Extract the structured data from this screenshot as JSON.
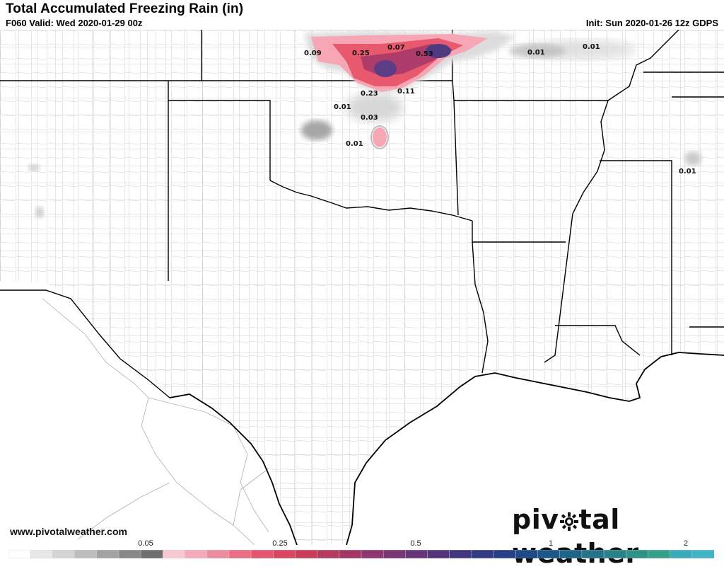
{
  "header": {
    "title": "Total Accumulated Freezing Rain (in)",
    "valid": "F060 Valid: Wed 2020-01-29 00z",
    "init": "Init: Sun 2020-01-26 12z GDPS"
  },
  "footer": {
    "website": "www.pivotalweather.com",
    "logo_left": "piv",
    "logo_right": "tal weather"
  },
  "colors": {
    "land": "#ffffff",
    "state_border": "#000000",
    "county_border": "#9a9a9a",
    "light_gray": "#d7d7d7",
    "mid_gray": "#a6a6a6",
    "pink": "#f7a6b6",
    "red": "#e8596e",
    "purple": "#5d3c86"
  },
  "map_values": [
    {
      "label": "0.09"
    },
    {
      "label": "0.25"
    },
    {
      "label": "0.07"
    },
    {
      "label": "0.53"
    },
    {
      "label": "0.01"
    },
    {
      "label": "0.01"
    },
    {
      "label": "0.23"
    },
    {
      "label": "0.11"
    },
    {
      "label": "0.01"
    },
    {
      "label": "0.03"
    },
    {
      "label": "0.01"
    },
    {
      "label": "0.01"
    }
  ],
  "colorbar": {
    "ticks": [
      "0.05",
      "0.25",
      "0.5",
      "1",
      "2"
    ],
    "colors": [
      "#ffffff",
      "#e8e8e8",
      "#d4d4d4",
      "#bdbdbd",
      "#a3a3a3",
      "#888888",
      "#6f6f6f",
      "#f8c8d3",
      "#f4aab9",
      "#ef8da0",
      "#ea6f86",
      "#e4556e",
      "#d9465f",
      "#c83e5a",
      "#b63a5f",
      "#a23766",
      "#8e366d",
      "#7a3673",
      "#673678",
      "#54357c",
      "#433680",
      "#333a84",
      "#263f87",
      "#1f4a88",
      "#1d5789",
      "#1f6589",
      "#237489",
      "#288389",
      "#2e9289",
      "#35a08a",
      "#3aaabb",
      "#43b3c8"
    ]
  }
}
